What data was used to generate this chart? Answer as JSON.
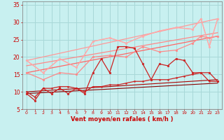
{
  "bg_color": "#c8f0f0",
  "grid_color": "#a8d8d8",
  "xlabel": "Vent moyen/en rafales ( km/h )",
  "xlabel_color": "#cc0000",
  "tick_color": "#cc0000",
  "axis_color": "#888888",
  "x_ticks": [
    0,
    1,
    2,
    3,
    4,
    5,
    6,
    7,
    8,
    9,
    10,
    11,
    12,
    13,
    14,
    15,
    16,
    17,
    18,
    19,
    20,
    21,
    22,
    23
  ],
  "ylim": [
    5,
    36
  ],
  "xlim": [
    -0.5,
    23.5
  ],
  "yticks": [
    5,
    10,
    15,
    20,
    25,
    30,
    35
  ],
  "series": [
    {
      "color": "#ffaaaa",
      "lw": 0.9,
      "marker": "o",
      "ms": 2.0,
      "data": [
        [
          0,
          19
        ],
        [
          2,
          15.5
        ],
        [
          4,
          19.5
        ],
        [
          6,
          17
        ],
        [
          8,
          24.5
        ],
        [
          10,
          25.5
        ],
        [
          12,
          24
        ],
        [
          14,
          26
        ],
        [
          16,
          27.5
        ],
        [
          18,
          28.5
        ],
        [
          20,
          28
        ],
        [
          21,
          31
        ],
        [
          22,
          23
        ],
        [
          23,
          31
        ]
      ]
    },
    {
      "color": "#ffaaaa",
      "lw": 0.9,
      "marker": null,
      "ms": 0,
      "data": [
        [
          0,
          19
        ],
        [
          2,
          15.5
        ],
        [
          4,
          19.5
        ],
        [
          6,
          17
        ],
        [
          8,
          24.5
        ],
        [
          10,
          25.5
        ],
        [
          12,
          24
        ],
        [
          14,
          26
        ],
        [
          16,
          27.5
        ],
        [
          18,
          28.5
        ],
        [
          20,
          28
        ],
        [
          21,
          31
        ],
        [
          22,
          23
        ],
        [
          23,
          31
        ]
      ]
    },
    {
      "color": "#ff8888",
      "lw": 0.9,
      "marker": "o",
      "ms": 2.0,
      "data": [
        [
          0,
          15.5
        ],
        [
          2,
          13.5
        ],
        [
          4,
          15.5
        ],
        [
          6,
          15
        ],
        [
          8,
          20
        ],
        [
          10,
          20.5
        ],
        [
          12,
          20
        ],
        [
          14,
          23
        ],
        [
          16,
          21.5
        ],
        [
          18,
          22
        ],
        [
          20,
          24
        ],
        [
          21,
          26
        ],
        [
          22,
          25.5
        ],
        [
          23,
          26
        ]
      ]
    },
    {
      "color": "#ff6666",
      "lw": 0.9,
      "marker": null,
      "ms": 0,
      "data": [
        [
          0,
          15.5
        ],
        [
          23,
          26
        ]
      ]
    },
    {
      "color": "#ff8888",
      "lw": 0.9,
      "marker": null,
      "ms": 0,
      "data": [
        [
          0,
          17.5
        ],
        [
          23,
          27
        ]
      ]
    },
    {
      "color": "#ff9999",
      "lw": 0.9,
      "marker": null,
      "ms": 0,
      "data": [
        [
          0,
          19
        ],
        [
          23,
          31
        ]
      ]
    },
    {
      "color": "#cc2222",
      "lw": 0.9,
      "marker": "o",
      "ms": 2.0,
      "data": [
        [
          0,
          9.5
        ],
        [
          1,
          7.5
        ],
        [
          2,
          11
        ],
        [
          3,
          9.5
        ],
        [
          4,
          11
        ],
        [
          5,
          9.5
        ],
        [
          6,
          11
        ],
        [
          7,
          9.5
        ],
        [
          8,
          15.5
        ],
        [
          9,
          19.5
        ],
        [
          10,
          15.5
        ],
        [
          11,
          23
        ],
        [
          12,
          23
        ],
        [
          13,
          22.5
        ],
        [
          14,
          18
        ],
        [
          15,
          13.5
        ],
        [
          16,
          18
        ],
        [
          17,
          17.5
        ],
        [
          18,
          19.5
        ],
        [
          19,
          19
        ],
        [
          20,
          15.5
        ],
        [
          21,
          15.5
        ],
        [
          22,
          15.5
        ],
        [
          23,
          13
        ]
      ]
    },
    {
      "color": "#cc2222",
      "lw": 0.9,
      "marker": "o",
      "ms": 1.5,
      "data": [
        [
          0,
          10
        ],
        [
          1,
          8.5
        ],
        [
          2,
          11
        ],
        [
          3,
          11
        ],
        [
          4,
          11.5
        ],
        [
          5,
          11.5
        ],
        [
          6,
          11
        ],
        [
          7,
          10
        ],
        [
          8,
          11.5
        ],
        [
          9,
          11.5
        ],
        [
          10,
          12
        ],
        [
          11,
          12
        ],
        [
          12,
          12.5
        ],
        [
          13,
          13
        ],
        [
          14,
          13
        ],
        [
          15,
          13.5
        ],
        [
          16,
          13.5
        ],
        [
          17,
          13.5
        ],
        [
          18,
          14
        ],
        [
          19,
          14.5
        ],
        [
          20,
          15
        ],
        [
          21,
          15.5
        ],
        [
          22,
          13
        ],
        [
          23,
          13
        ]
      ]
    },
    {
      "color": "#aa0000",
      "lw": 0.8,
      "marker": null,
      "ms": 0,
      "data": [
        [
          0,
          10
        ],
        [
          23,
          13.5
        ]
      ]
    },
    {
      "color": "#880000",
      "lw": 0.8,
      "marker": null,
      "ms": 0,
      "data": [
        [
          0,
          9.5
        ],
        [
          23,
          12.5
        ]
      ]
    }
  ]
}
